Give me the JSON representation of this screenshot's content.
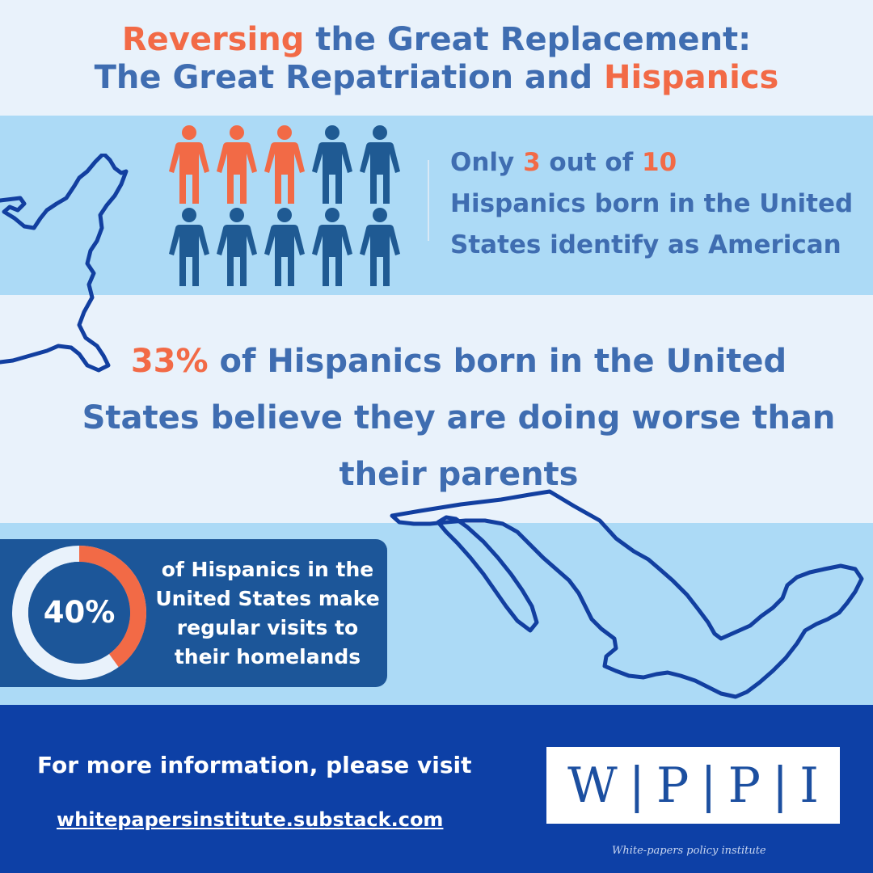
{
  "title": {
    "line1_accent": "Reversing",
    "line1_rest": " the Great Replacement:",
    "line2_start": "The Great Repatriation and ",
    "line2_accent": "Hispanics"
  },
  "stat_identity": {
    "lead": "Only ",
    "num1": "3",
    "mid": " out of ",
    "num2": "10",
    "tail": "Hispanics born in the United States identify as American",
    "highlighted_people": 3,
    "total_people": 10
  },
  "stat_worse": {
    "percent": "33%",
    "text": " of Hispanics born in the United States believe they are doing worse than their parents"
  },
  "stat_visits": {
    "percent_label": "40%",
    "fraction": 0.4,
    "text": "of Hispanics in the United States make regular visits to their homelands"
  },
  "footer": {
    "cta": "For more information, please visit",
    "link": "whitepapersinstitute.substack.com",
    "logo_letters": [
      "W",
      "P",
      "P",
      "I"
    ],
    "tagline": "White-papers policy institute"
  },
  "colors": {
    "accent": "#f26a46",
    "text_blue": "#3f6db1",
    "person_dark": "#1f5a93",
    "footer_bg": "#0d40a6"
  },
  "icons": {
    "person": "person-icon",
    "map_us": "us-east-coast-outline",
    "map_mexico": "mexico-outline"
  }
}
